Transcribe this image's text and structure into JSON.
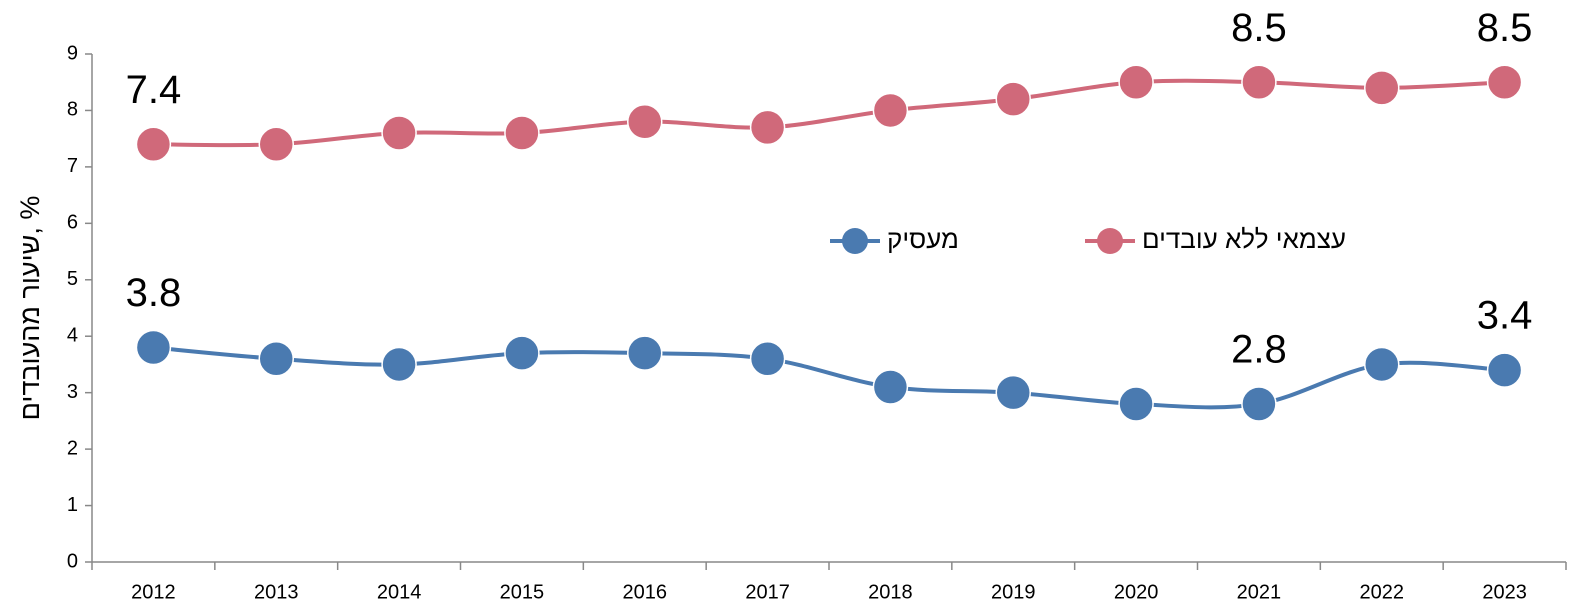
{
  "chart_data": {
    "type": "line",
    "y_label": "שיעור מהעובדים, %",
    "categories": [
      "2012",
      "2013",
      "2014",
      "2015",
      "2016",
      "2017",
      "2018",
      "2019",
      "2020",
      "2021",
      "2022",
      "2023"
    ],
    "series": [
      {
        "name": "מעסיק",
        "color": "#4a7ab0",
        "values": [
          3.8,
          3.6,
          3.5,
          3.7,
          3.7,
          3.6,
          3.1,
          3.0,
          2.8,
          2.8,
          3.5,
          3.4
        ],
        "labels_at": [
          0,
          9,
          11
        ]
      },
      {
        "name": "עצמאי ללא עובדים",
        "color": "#d0697a",
        "values": [
          7.4,
          7.4,
          7.6,
          7.6,
          7.8,
          7.7,
          8.0,
          8.2,
          8.5,
          8.5,
          8.4,
          8.5
        ],
        "labels_at": [
          0,
          9,
          11
        ]
      }
    ],
    "ylim": [
      0,
      9
    ],
    "yticks": [
      0,
      1,
      2,
      3,
      4,
      5,
      6,
      7,
      8,
      9
    ],
    "grid": false,
    "smooth": true
  }
}
